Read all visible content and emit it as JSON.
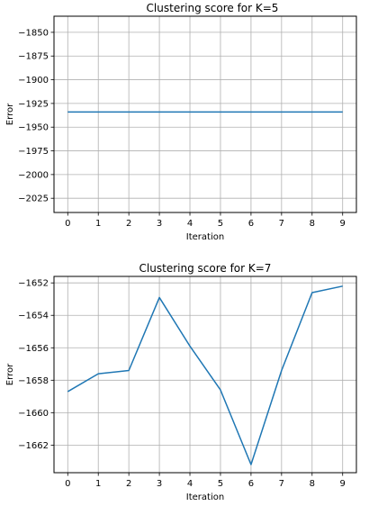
{
  "chart_data": [
    {
      "type": "line",
      "title": "Clustering score for K=5",
      "xlabel": "Iteration",
      "ylabel": "Error",
      "x": [
        0,
        1,
        2,
        3,
        4,
        5,
        6,
        7,
        8,
        9
      ],
      "x_ticks": [
        "0",
        "1",
        "2",
        "3",
        "4",
        "5",
        "6",
        "7",
        "8",
        "9"
      ],
      "y_ticks": [
        -1850,
        -1875,
        -1900,
        -1925,
        -1950,
        -1975,
        -2000,
        -2025
      ],
      "y_tick_labels": [
        "−1850",
        "−1875",
        "−1900",
        "−1925",
        "−1950",
        "−1975",
        "−2000",
        "−2025"
      ],
      "xlim": [
        -0.45,
        9.45
      ],
      "ylim": [
        -2040,
        -1833
      ],
      "grid": true,
      "color": "#1f77b4",
      "series": [
        {
          "values": [
            -1934,
            -1934,
            -1934,
            -1934,
            -1934,
            -1934,
            -1934,
            -1934,
            -1934,
            -1934
          ]
        }
      ]
    },
    {
      "type": "line",
      "title": "Clustering score for K=7",
      "xlabel": "Iteration",
      "ylabel": "Error",
      "x": [
        0,
        1,
        2,
        3,
        4,
        5,
        6,
        7,
        8,
        9
      ],
      "x_ticks": [
        "0",
        "1",
        "2",
        "3",
        "4",
        "5",
        "6",
        "7",
        "8",
        "9"
      ],
      "y_ticks": [
        -1652,
        -1654,
        -1656,
        -1658,
        -1660,
        -1662
      ],
      "y_tick_labels": [
        "−1652",
        "−1654",
        "−1656",
        "−1658",
        "−1660",
        "−1662"
      ],
      "xlim": [
        -0.45,
        9.45
      ],
      "ylim": [
        -1663.7,
        -1651.6
      ],
      "grid": true,
      "color": "#1f77b4",
      "series": [
        {
          "values": [
            -1658.7,
            -1657.6,
            -1657.4,
            -1652.9,
            -1655.9,
            -1658.6,
            -1663.2,
            -1657.4,
            -1652.6,
            -1652.2
          ]
        }
      ]
    }
  ]
}
